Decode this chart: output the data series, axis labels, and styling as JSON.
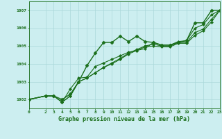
{
  "bg_color": "#cceef0",
  "plot_bg_color": "#cceef0",
  "grid_color": "#aad8da",
  "line_color": "#1a6e1a",
  "title": "Graphe pression niveau de la mer (hPa)",
  "xlim": [
    0,
    23
  ],
  "ylim": [
    1001.5,
    1007.5
  ],
  "xticks": [
    0,
    2,
    3,
    4,
    5,
    6,
    7,
    8,
    9,
    10,
    11,
    12,
    13,
    14,
    15,
    16,
    17,
    18,
    19,
    20,
    21,
    22,
    23
  ],
  "yticks": [
    1002,
    1003,
    1004,
    1005,
    1006,
    1007
  ],
  "series": [
    {
      "x": [
        0,
        2,
        3,
        4,
        5,
        6,
        7,
        8,
        9,
        10,
        11,
        12,
        13,
        14,
        15,
        16,
        17,
        18,
        19,
        20,
        21,
        22,
        23
      ],
      "y": [
        1002.0,
        1002.2,
        1002.2,
        1002.0,
        1002.3,
        1003.0,
        1003.9,
        1004.6,
        1005.2,
        1005.2,
        1005.55,
        1005.25,
        1005.55,
        1005.25,
        1005.2,
        1005.05,
        1005.05,
        1005.2,
        1005.3,
        1006.3,
        1006.3,
        1007.0,
        1007.0
      ],
      "marker": "D",
      "ms": 2.5,
      "lw": 1.0
    },
    {
      "x": [
        0,
        2,
        3,
        4,
        5,
        6,
        7,
        8,
        9,
        10,
        11,
        12,
        13,
        14,
        15,
        16,
        17,
        18,
        19,
        20,
        21,
        22,
        23
      ],
      "y": [
        1002.0,
        1002.2,
        1002.2,
        1001.85,
        1002.6,
        1003.2,
        1003.25,
        1003.85,
        1004.05,
        1004.25,
        1004.45,
        1004.65,
        1004.75,
        1004.85,
        1005.2,
        1005.05,
        1005.05,
        1005.25,
        1005.3,
        1006.0,
        1006.2,
        1006.75,
        1007.0
      ],
      "marker": "D",
      "ms": 2.0,
      "lw": 0.8
    },
    {
      "x": [
        0,
        2,
        3,
        4,
        5,
        6,
        7,
        8,
        9,
        10,
        11,
        12,
        13,
        14,
        15,
        16,
        17,
        18,
        19,
        20,
        21,
        22,
        23
      ],
      "y": [
        1002.0,
        1002.2,
        1002.2,
        1001.85,
        1002.2,
        1003.0,
        1003.2,
        1003.5,
        1003.8,
        1004.05,
        1004.3,
        1004.6,
        1004.8,
        1005.0,
        1005.1,
        1005.0,
        1005.0,
        1005.2,
        1005.2,
        1005.75,
        1005.95,
        1006.5,
        1007.0
      ],
      "marker": "D",
      "ms": 2.0,
      "lw": 0.8
    },
    {
      "x": [
        0,
        2,
        3,
        4,
        5,
        6,
        7,
        8,
        9,
        10,
        11,
        12,
        13,
        14,
        15,
        16,
        17,
        18,
        19,
        20,
        21,
        22,
        23
      ],
      "y": [
        1002.0,
        1002.2,
        1002.2,
        1001.85,
        1002.2,
        1003.0,
        1003.2,
        1003.5,
        1003.8,
        1004.0,
        1004.25,
        1004.55,
        1004.75,
        1004.95,
        1005.0,
        1004.95,
        1004.95,
        1005.15,
        1005.15,
        1005.6,
        1005.85,
        1006.35,
        1007.0
      ],
      "marker": "D",
      "ms": 2.0,
      "lw": 0.8
    }
  ]
}
